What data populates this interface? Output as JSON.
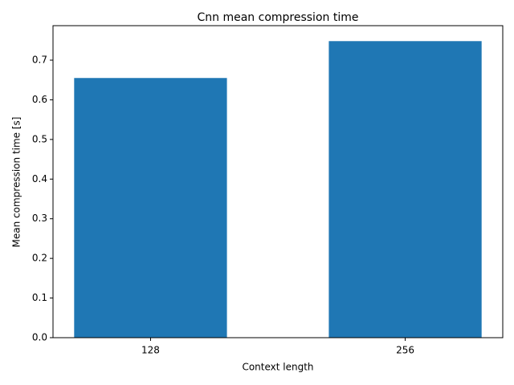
{
  "chart_data": {
    "type": "bar",
    "title": "Cnn mean compression time",
    "x_label": "Context length",
    "y_label": "Mean compression time [s]",
    "categories": [
      "128",
      "256"
    ],
    "values": [
      0.655,
      0.748
    ],
    "color": "#1f77b4",
    "ylim": [
      0,
      0.787
    ],
    "yticks": [
      {
        "value": 0,
        "label": "0.0"
      },
      0.1,
      0.2,
      0.3,
      0.4,
      0.5,
      0.6,
      0.7
    ],
    "grid": false
  }
}
